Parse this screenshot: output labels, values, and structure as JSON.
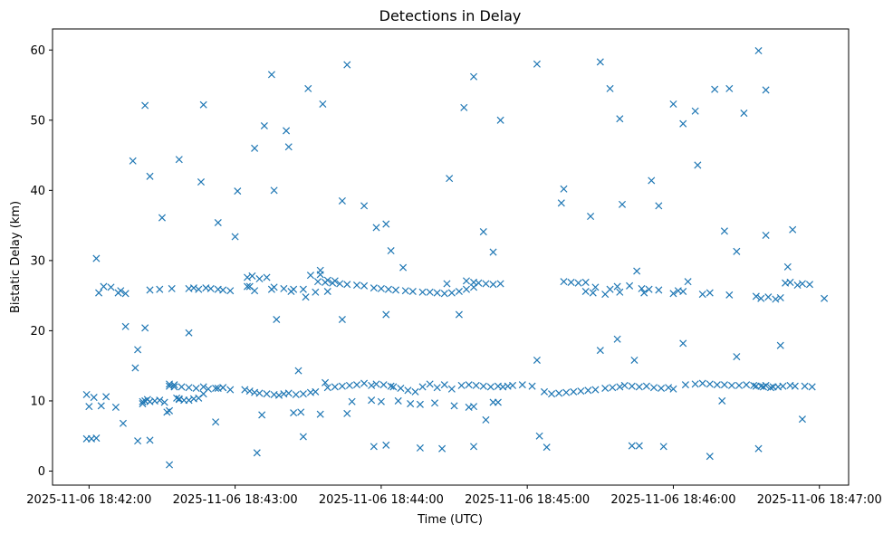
{
  "chart_data": {
    "type": "scatter",
    "title": "Detections in Delay",
    "xlabel": "Time (UTC)",
    "ylabel": "Bistatic Delay (km)",
    "xlim": [
      "2025-11-06 18:41:45",
      "2025-11-06 18:47:12"
    ],
    "ylim": [
      -2,
      63
    ],
    "x_ticks": [
      "2025-11-06 18:42:00",
      "2025-11-06 18:43:00",
      "2025-11-06 18:44:00",
      "2025-11-06 18:45:00",
      "2025-11-06 18:46:00",
      "2025-11-06 18:47:00"
    ],
    "y_ticks": [
      0,
      10,
      20,
      30,
      40,
      50,
      60
    ],
    "grid": false,
    "marker": "x",
    "color": "#1f77b4",
    "series": [
      {
        "x": [
          "2025-11-06 18:41:59",
          "2025-11-06 18:42:00",
          "2025-11-06 18:42:02",
          "2025-11-06 18:42:05",
          "2025-11-06 18:42:07",
          "2025-11-06 18:42:11",
          "2025-11-06 18:41:59",
          "2025-11-06 18:42:01",
          "2025-11-06 18:42:03",
          "2025-11-06 18:42:06",
          "2025-11-06 18:42:09",
          "2025-11-06 18:42:13",
          "2025-11-06 18:42:15",
          "2025-11-06 18:42:03",
          "2025-11-06 18:42:04",
          "2025-11-06 18:42:12",
          "2025-11-06 18:42:15",
          "2025-11-06 18:42:19",
          "2025-11-06 18:42:23",
          "2025-11-06 18:42:22",
          "2025-11-06 18:42:22",
          "2025-11-06 18:42:23",
          "2025-11-06 18:42:24",
          "2025-11-06 18:42:25",
          "2025-11-06 18:42:27",
          "2025-11-06 18:42:29",
          "2025-11-06 18:42:31",
          "2025-11-06 18:42:33",
          "2025-11-06 18:42:35",
          "2025-11-06 18:42:37",
          "2025-11-06 18:42:39",
          "2025-11-06 18:42:41",
          "2025-11-06 18:42:33",
          "2025-11-06 18:42:35",
          "2025-11-06 18:42:38",
          "2025-11-06 18:42:41",
          "2025-11-06 18:42:44",
          "2025-11-06 18:42:47",
          "2025-11-06 18:42:49",
          "2025-11-06 18:42:52",
          "2025-11-06 18:42:55",
          "2025-11-06 18:42:58",
          "2025-11-06 18:42:25",
          "2025-11-06 18:42:29",
          "2025-11-06 18:42:34",
          "2025-11-06 18:42:41",
          "2025-11-06 18:42:43",
          "2025-11-06 18:42:45",
          "2025-11-06 18:42:48",
          "2025-11-06 18:42:50",
          "2025-11-06 18:42:53",
          "2025-11-06 18:42:55",
          "2025-11-06 18:42:58",
          "2025-11-06 18:42:32",
          "2025-11-06 18:42:33",
          "2025-11-06 18:42:37",
          "2025-11-06 18:42:43",
          "2025-11-06 18:42:45",
          "2025-11-06 18:42:47",
          "2025-11-06 18:42:53",
          "2025-11-06 18:42:55",
          "2025-11-06 18:43:04",
          "2025-11-06 18:43:06",
          "2025-11-06 18:43:08",
          "2025-11-06 18:43:10",
          "2025-11-06 18:43:13",
          "2025-11-06 18:43:16",
          "2025-11-06 18:43:18",
          "2025-11-06 18:43:20",
          "2025-11-06 18:43:22",
          "2025-11-06 18:43:25",
          "2025-11-06 18:43:28",
          "2025-11-06 18:43:31",
          "2025-11-06 18:43:33",
          "2025-11-06 18:43:05",
          "2025-11-06 18:43:07",
          "2025-11-06 18:43:10",
          "2025-11-06 18:43:13",
          "2025-11-06 18:43:16",
          "2025-11-06 18:43:20",
          "2025-11-06 18:43:24",
          "2025-11-06 18:43:28",
          "2025-11-06 18:43:31",
          "2025-11-06 18:43:35",
          "2025-11-06 18:43:38",
          "2025-11-06 18:43:41",
          "2025-11-06 18:43:05",
          "2025-11-06 18:43:06",
          "2025-11-06 18:43:08",
          "2025-11-06 18:43:15",
          "2025-11-06 18:43:23",
          "2025-11-06 18:43:29",
          "2025-11-06 18:43:33",
          "2025-11-06 18:43:38",
          "2025-11-06 18:43:38",
          "2025-11-06 18:43:41",
          "2025-11-06 18:43:44",
          "2025-11-06 18:43:47",
          "2025-11-06 18:43:50",
          "2025-11-06 18:43:53",
          "2025-11-06 18:43:56",
          "2025-11-06 18:43:58",
          "2025-11-06 18:44:01",
          "2025-11-06 18:44:04",
          "2025-11-06 18:43:34",
          "2025-11-06 18:43:37",
          "2025-11-06 18:43:40",
          "2025-11-06 18:43:43",
          "2025-11-06 18:43:46",
          "2025-11-06 18:43:50",
          "2025-11-06 18:43:53",
          "2025-11-06 18:43:57",
          "2025-11-06 18:44:00",
          "2025-11-06 18:44:03",
          "2025-11-06 18:44:06",
          "2025-11-06 18:43:24",
          "2025-11-06 18:43:27",
          "2025-11-06 18:43:35",
          "2025-11-06 18:43:37",
          "2025-11-06 18:43:46",
          "2025-11-06 18:43:48",
          "2025-11-06 18:43:56",
          "2025-11-06 18:44:00",
          "2025-11-06 18:44:07",
          "2025-11-06 18:44:05",
          "2025-11-06 18:44:08",
          "2025-11-06 18:44:11",
          "2025-11-06 18:44:14",
          "2025-11-06 18:44:17",
          "2025-11-06 18:44:20",
          "2025-11-06 18:44:23",
          "2025-11-06 18:44:26",
          "2025-11-06 18:44:29",
          "2025-11-06 18:44:10",
          "2025-11-06 18:44:13",
          "2025-11-06 18:44:17",
          "2025-11-06 18:44:20",
          "2025-11-06 18:44:23",
          "2025-11-06 18:44:26",
          "2025-11-06 18:44:29",
          "2025-11-06 18:44:32",
          "2025-11-06 18:44:35",
          "2025-11-06 18:44:38",
          "2025-11-06 18:44:12",
          "2025-11-06 18:44:16",
          "2025-11-06 18:44:22",
          "2025-11-06 18:44:30",
          "2025-11-06 18:44:36",
          "2025-11-06 18:44:38",
          "2025-11-06 18:44:46",
          "2025-11-06 18:44:48",
          "2025-11-06 18:44:33",
          "2025-11-06 18:44:36",
          "2025-11-06 18:44:39",
          "2025-11-06 18:44:42",
          "2025-11-06 18:44:45",
          "2025-11-06 18:44:48",
          "2025-11-06 18:44:50",
          "2025-11-06 18:44:52",
          "2025-11-06 18:44:54",
          "2025-11-06 18:44:58",
          "2025-11-06 18:45:02",
          "2025-11-06 18:44:35",
          "2025-11-06 18:44:38",
          "2025-11-06 18:44:40",
          "2025-11-06 18:44:43",
          "2025-11-06 18:44:46",
          "2025-11-06 18:44:49",
          "2025-11-06 18:45:07",
          "2025-11-06 18:45:10",
          "2025-11-06 18:45:13",
          "2025-11-06 18:45:16",
          "2025-11-06 18:45:19",
          "2025-11-06 18:45:22",
          "2025-11-06 18:45:25",
          "2025-11-06 18:45:28",
          "2025-11-06 18:45:32",
          "2025-11-06 18:45:35",
          "2025-11-06 18:45:38",
          "2025-11-06 18:45:15",
          "2025-11-06 18:45:18",
          "2025-11-06 18:45:21",
          "2025-11-06 18:45:24",
          "2025-11-06 18:45:27",
          "2025-11-06 18:45:32",
          "2025-11-06 18:45:37",
          "2025-11-06 18:45:42",
          "2025-11-06 18:45:47",
          "2025-11-06 18:45:50",
          "2025-11-06 18:45:40",
          "2025-11-06 18:45:43",
          "2025-11-06 18:45:46",
          "2025-11-06 18:45:49",
          "2025-11-06 18:45:52",
          "2025-11-06 18:45:55",
          "2025-11-06 18:45:58",
          "2025-11-06 18:46:00",
          "2025-11-06 18:45:24",
          "2025-11-06 18:45:28",
          "2025-11-06 18:45:34",
          "2025-11-06 18:45:38",
          "2025-11-06 18:45:48",
          "2025-11-06 18:45:54",
          "2025-11-06 18:46:00",
          "2025-11-06 18:46:02",
          "2025-11-06 18:46:04",
          "2025-11-06 18:46:05",
          "2025-11-06 18:46:09",
          "2025-11-06 18:46:12",
          "2025-11-06 18:46:15",
          "2025-11-06 18:46:18",
          "2025-11-06 18:46:21",
          "2025-11-06 18:46:24",
          "2025-11-06 18:46:27",
          "2025-11-06 18:46:30",
          "2025-11-06 18:46:33",
          "2025-11-06 18:46:36",
          "2025-11-06 18:46:38",
          "2025-11-06 18:46:41",
          "2025-11-06 18:46:43",
          "2025-11-06 18:46:45",
          "2025-11-06 18:46:48",
          "2025-11-06 18:46:50",
          "2025-11-06 18:46:12",
          "2025-11-06 18:46:15",
          "2025-11-06 18:46:23",
          "2025-11-06 18:46:34",
          "2025-11-06 18:46:36",
          "2025-11-06 18:46:39",
          "2025-11-06 18:46:42",
          "2025-11-06 18:46:44",
          "2025-11-06 18:46:46",
          "2025-11-06 18:46:48",
          "2025-11-06 18:46:51",
          "2025-11-06 18:46:53",
          "2025-11-06 18:46:56",
          "2025-11-06 18:47:02",
          "2025-11-06 18:46:34",
          "2025-11-06 18:46:37",
          "2025-11-06 18:46:40",
          "2025-11-06 18:46:54",
          "2025-11-06 18:46:57",
          "2025-11-06 18:42:18",
          "2025-11-06 18:42:23",
          "2025-11-06 18:42:37",
          "2025-11-06 18:42:47",
          "2025-11-06 18:42:53",
          "2025-11-06 18:43:01",
          "2025-11-06 18:43:08",
          "2025-11-06 18:43:15",
          "2025-11-06 18:43:21",
          "2025-11-06 18:43:30",
          "2025-11-06 18:43:36",
          "2025-11-06 18:43:44",
          "2025-11-06 18:43:46",
          "2025-11-06 18:43:58",
          "2025-11-06 18:44:02",
          "2025-11-06 18:44:34",
          "2025-11-06 18:44:38",
          "2025-11-06 18:44:49",
          "2025-11-06 18:45:04",
          "2025-11-06 18:45:30",
          "2025-11-06 18:45:34",
          "2025-11-06 18:45:38",
          "2025-11-06 18:45:51",
          "2025-11-06 18:46:00",
          "2025-11-06 18:46:04",
          "2025-11-06 18:46:09",
          "2025-11-06 18:46:17",
          "2025-11-06 18:46:23",
          "2025-11-06 18:46:29",
          "2025-11-06 18:46:35",
          "2025-11-06 18:46:38",
          "2025-11-06 18:42:25",
          "2025-11-06 18:42:30",
          "2025-11-06 18:42:46",
          "2025-11-06 18:43:00",
          "2025-11-06 18:43:12",
          "2025-11-06 18:43:22",
          "2025-11-06 18:43:35",
          "2025-11-06 18:43:53",
          "2025-11-06 18:44:04",
          "2025-11-06 18:44:28",
          "2025-11-06 18:44:46",
          "2025-11-06 18:45:15",
          "2025-11-06 18:45:26",
          "2025-11-06 18:45:39",
          "2025-11-06 18:45:54",
          "2025-11-06 18:46:10",
          "2025-11-06 18:46:21",
          "2025-11-06 18:46:38",
          "2025-11-06 18:46:49",
          "2025-11-06 18:43:16",
          "2025-11-06 18:44:09",
          "2025-11-06 18:44:27",
          "2025-11-06 18:44:42",
          "2025-11-06 18:45:14",
          "2025-11-06 18:45:37",
          "2025-11-06 18:45:45",
          "2025-11-06 18:46:06",
          "2025-11-06 18:46:26",
          "2025-11-06 18:46:47",
          "2025-11-06 18:42:20",
          "2025-11-06 18:42:41",
          "2025-11-06 18:43:17",
          "2025-11-06 18:43:26",
          "2025-11-06 18:43:44",
          "2025-11-06 18:44:02",
          "2025-11-06 18:44:32",
          "2025-11-06 18:45:04",
          "2025-11-06 18:45:30",
          "2025-11-06 18:45:44",
          "2025-11-06 18:46:04",
          "2025-11-06 18:46:26",
          "2025-11-06 18:46:44",
          "2025-11-06 18:42:14",
          "2025-11-06 18:42:25",
          "2025-11-06 18:42:36",
          "2025-11-06 18:42:52",
          "2025-11-06 18:43:11",
          "2025-11-06 18:43:28",
          "2025-11-06 18:44:02",
          "2025-11-06 18:44:25",
          "2025-11-06 18:44:43",
          "2025-11-06 18:45:05",
          "2025-11-06 18:45:46",
          "2025-11-06 18:46:20",
          "2025-11-06 18:46:53",
          "2025-11-06 18:42:20",
          "2025-11-06 18:42:33",
          "2025-11-06 18:43:09",
          "2025-11-06 18:43:57",
          "2025-11-06 18:44:16",
          "2025-11-06 18:44:38",
          "2025-11-06 18:45:08",
          "2025-11-06 18:45:43",
          "2025-11-06 18:45:56",
          "2025-11-06 18:46:15",
          "2025-11-06 18:46:35"
        ],
        "y": [
          10.9,
          9.2,
          10.5,
          9.3,
          10.6,
          9.1,
          4.6,
          4.6,
          4.7,
          26.3,
          26.2,
          25.7,
          25.3,
          30.3,
          25.4,
          25.4,
          20.6,
          14.7,
          20.4,
          9.6,
          9.9,
          10.0,
          10.2,
          9.9,
          10.0,
          10.1,
          9.8,
          12.4,
          12.3,
          10.2,
          10.1,
          10.1,
          12.1,
          12.0,
          12.0,
          11.9,
          11.8,
          12.0,
          11.7,
          11.8,
          11.9,
          11.6,
          25.8,
          25.9,
          26.0,
          26.0,
          26.1,
          25.9,
          26.1,
          26.0,
          25.9,
          25.8,
          25.7,
          8.4,
          8.6,
          10.3,
          10.3,
          10.4,
          11.0,
          11.8,
          11.9,
          11.6,
          11.4,
          11.2,
          11.1,
          11.0,
          10.9,
          10.8,
          11.0,
          11.1,
          10.9,
          11.0,
          11.2,
          11.3,
          27.6,
          27.8,
          27.4,
          27.6,
          26.2,
          26.0,
          25.9,
          25.9,
          27.9,
          28.0,
          27.2,
          27.1,
          26.3,
          26.3,
          25.7,
          25.9,
          25.6,
          24.8,
          25.5,
          25.6,
          11.9,
          12.0,
          12.1,
          12.2,
          12.3,
          12.5,
          12.2,
          12.4,
          12.3,
          12.1,
          27.0,
          26.9,
          26.8,
          26.7,
          26.6,
          26.5,
          26.4,
          26.1,
          26.0,
          25.9,
          25.8,
          8.3,
          8.4,
          8.1,
          12.6,
          8.2,
          9.9,
          10.1,
          9.9,
          10.0,
          12.0,
          11.8,
          11.5,
          11.3,
          12.0,
          12.4,
          11.9,
          12.3,
          11.7,
          25.7,
          25.6,
          25.5,
          25.5,
          25.4,
          25.3,
          25.4,
          25.6,
          25.9,
          26.2,
          9.6,
          9.5,
          9.7,
          9.3,
          9.1,
          9.2,
          9.8,
          9.8,
          12.2,
          12.3,
          12.2,
          12.1,
          12.0,
          12.1,
          12.0,
          12.1,
          12.2,
          12.3,
          12.1,
          27.1,
          26.9,
          26.8,
          26.7,
          26.6,
          26.7,
          11.3,
          11.0,
          11.1,
          11.2,
          11.3,
          11.4,
          11.5,
          11.6,
          11.8,
          11.9,
          12.0,
          27.0,
          26.9,
          26.8,
          26.9,
          25.4,
          25.2,
          26.3,
          26.4,
          26.0,
          25.9,
          12.2,
          12.1,
          12.0,
          12.1,
          11.9,
          11.8,
          11.9,
          11.7,
          25.6,
          26.2,
          25.9,
          25.5,
          25.4,
          25.8,
          25.3,
          25.7,
          25.6,
          12.3,
          12.4,
          12.5,
          12.4,
          12.3,
          12.3,
          12.2,
          12.2,
          12.3,
          12.2,
          12.1,
          12.2,
          12.0,
          12.0,
          12.1,
          12.2,
          12.1,
          25.2,
          25.4,
          25.1,
          24.9,
          24.6,
          24.8,
          24.5,
          24.7,
          26.8,
          26.9,
          26.5,
          26.7,
          26.6,
          24.6,
          12.1,
          12.0,
          11.9,
          12.1,
          12.0,
          44.2,
          52.1,
          44.4,
          52.2,
          35.4,
          39.9,
          46.0,
          56.5,
          48.5,
          54.5,
          52.3,
          38.5,
          57.9,
          34.7,
          35.2,
          51.8,
          56.2,
          50.0,
          58.0,
          58.3,
          54.5,
          50.2,
          41.4,
          52.3,
          49.5,
          51.3,
          54.4,
          54.5,
          51.0,
          59.9,
          54.3,
          42.0,
          36.1,
          41.2,
          33.4,
          49.2,
          46.2,
          28.6,
          37.8,
          31.4,
          41.7,
          31.2,
          40.2,
          36.3,
          38.0,
          37.8,
          43.6,
          34.2,
          33.6,
          34.4,
          40.0,
          29.0,
          26.7,
          34.1,
          38.2,
          18.8,
          28.5,
          27.0,
          31.3,
          29.1,
          17.3,
          19.7,
          21.6,
          14.3,
          21.6,
          22.3,
          22.3,
          15.8,
          17.2,
          15.8,
          18.2,
          16.3,
          17.9,
          6.8,
          4.4,
          10.4,
          7.0,
          8.0,
          4.9,
          3.7,
          3.2,
          7.3,
          5.0,
          3.6,
          10.0,
          7.4,
          4.3,
          0.9,
          2.6,
          3.5,
          3.3,
          3.5,
          3.4,
          3.6,
          3.5,
          2.1,
          3.2
        ]
      }
    ]
  }
}
